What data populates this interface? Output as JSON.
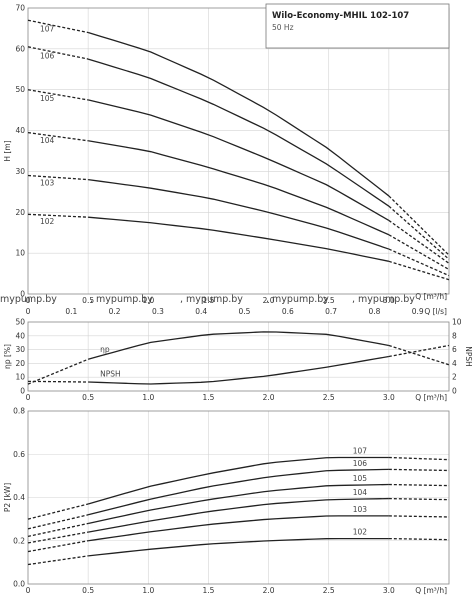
{
  "header": {
    "title": "Wilo-Economy-MHIL 102-107",
    "frequency": "50 Hz"
  },
  "watermark": "mypump.by",
  "chart_data": [
    {
      "type": "line",
      "name": "head",
      "ylabel": "H [m]",
      "xlabel_primary": "Q [m³/h]",
      "xlabel_secondary": "Q [l/s]",
      "xlim": [
        0,
        3.5
      ],
      "ylim": [
        0,
        70
      ],
      "xticks": [
        "0",
        "0.5",
        "1.0",
        "1.5",
        "2.0",
        "2.5",
        "3.0"
      ],
      "x2ticks": [
        "0",
        "0.1",
        "0.2",
        "0.3",
        "0.4",
        "0.5",
        "0.6",
        "0.7",
        "0.8",
        "0.9"
      ],
      "yticks": [
        "0",
        "10",
        "20",
        "30",
        "40",
        "50",
        "60",
        "70"
      ],
      "series": [
        {
          "name": "107",
          "solid_range": [
            0.5,
            3.0
          ],
          "x": [
            0,
            0.5,
            1.0,
            1.5,
            2.0,
            2.5,
            3.0,
            3.5
          ],
          "y": [
            67,
            64,
            59.5,
            53,
            45,
            35.5,
            24,
            9.5
          ]
        },
        {
          "name": "106",
          "solid_range": [
            0.5,
            3.0
          ],
          "x": [
            0,
            0.5,
            1.0,
            1.5,
            2.0,
            2.5,
            3.0,
            3.5
          ],
          "y": [
            60.5,
            57.5,
            53,
            47,
            40,
            31.5,
            21.5,
            8.5
          ]
        },
        {
          "name": "105",
          "solid_range": [
            0.5,
            3.0
          ],
          "x": [
            0,
            0.5,
            1.0,
            1.5,
            2.0,
            2.5,
            3.0,
            3.5
          ],
          "y": [
            50,
            47.5,
            44,
            39,
            33,
            26.5,
            18,
            7.5
          ]
        },
        {
          "name": "104",
          "solid_range": [
            0.5,
            3.0
          ],
          "x": [
            0,
            0.5,
            1.0,
            1.5,
            2.0,
            2.5,
            3.0,
            3.5
          ],
          "y": [
            39.5,
            37.5,
            35,
            31,
            26.5,
            21,
            14.5,
            6
          ]
        },
        {
          "name": "103",
          "solid_range": [
            0.5,
            3.0
          ],
          "x": [
            0,
            0.5,
            1.0,
            1.5,
            2.0,
            2.5,
            3.0,
            3.5
          ],
          "y": [
            29,
            28,
            26,
            23.5,
            20,
            16,
            11,
            4.5
          ]
        },
        {
          "name": "102",
          "solid_range": [
            0.5,
            3.0
          ],
          "x": [
            0,
            0.5,
            1.0,
            1.5,
            2.0,
            2.5,
            3.0,
            3.5
          ],
          "y": [
            19.5,
            18.8,
            17.5,
            15.8,
            13.5,
            11,
            8,
            3.5
          ]
        }
      ]
    },
    {
      "type": "line",
      "name": "efficiency-npsh",
      "ylabel": "ηp [%]",
      "y2label": "NPSH",
      "xlabel": "Q [m³/h]",
      "xlim": [
        0,
        3.5
      ],
      "ylim": [
        0,
        50
      ],
      "y2lim": [
        0,
        10
      ],
      "xticks": [
        "0",
        "0.5",
        "1.0",
        "1.5",
        "2.0",
        "2.5",
        "3.0"
      ],
      "yticks": [
        "0",
        "10",
        "20",
        "30",
        "40",
        "50"
      ],
      "y2ticks": [
        "0",
        "2",
        "4",
        "6",
        "8",
        "10"
      ],
      "series": [
        {
          "name": "ηp",
          "axis": "left",
          "solid_range": [
            0.5,
            3.0
          ],
          "x": [
            0,
            0.5,
            1.0,
            1.5,
            2.0,
            2.5,
            3.0,
            3.5
          ],
          "y": [
            5,
            23,
            35,
            41,
            43,
            41,
            33,
            19
          ]
        },
        {
          "name": "NPSH",
          "axis": "right",
          "solid_range": [
            0.5,
            3.0
          ],
          "x": [
            0,
            0.5,
            1.0,
            1.5,
            2.0,
            2.5,
            3.0,
            3.5
          ],
          "y": [
            1.4,
            1.3,
            1.0,
            1.3,
            2.2,
            3.5,
            5.0,
            6.6
          ]
        }
      ]
    },
    {
      "type": "line",
      "name": "power",
      "ylabel": "P2 [kW]",
      "xlabel": "Q [m³/h]",
      "xlim": [
        0,
        3.5
      ],
      "ylim": [
        0,
        0.8
      ],
      "xticks": [
        "0",
        "0.5",
        "1.0",
        "1.5",
        "2.0",
        "2.5",
        "3.0"
      ],
      "yticks": [
        "0.0",
        "0.2",
        "0.4",
        "0.6",
        "0.8"
      ],
      "series": [
        {
          "name": "107",
          "solid_range": [
            0.5,
            3.0
          ],
          "x": [
            0,
            0.5,
            1.0,
            1.5,
            2.0,
            2.5,
            3.0,
            3.5
          ],
          "y": [
            0.3,
            0.37,
            0.45,
            0.51,
            0.56,
            0.585,
            0.585,
            0.575
          ]
        },
        {
          "name": "106",
          "solid_range": [
            0.5,
            3.0
          ],
          "x": [
            0,
            0.5,
            1.0,
            1.5,
            2.0,
            2.5,
            3.0,
            3.5
          ],
          "y": [
            0.255,
            0.32,
            0.39,
            0.45,
            0.495,
            0.525,
            0.53,
            0.525
          ]
        },
        {
          "name": "105",
          "solid_range": [
            0.5,
            3.0
          ],
          "x": [
            0,
            0.5,
            1.0,
            1.5,
            2.0,
            2.5,
            3.0,
            3.5
          ],
          "y": [
            0.22,
            0.28,
            0.34,
            0.39,
            0.43,
            0.455,
            0.46,
            0.455
          ]
        },
        {
          "name": "104",
          "solid_range": [
            0.5,
            3.0
          ],
          "x": [
            0,
            0.5,
            1.0,
            1.5,
            2.0,
            2.5,
            3.0,
            3.5
          ],
          "y": [
            0.19,
            0.24,
            0.29,
            0.335,
            0.37,
            0.39,
            0.395,
            0.39
          ]
        },
        {
          "name": "103",
          "solid_range": [
            0.5,
            3.0
          ],
          "x": [
            0,
            0.5,
            1.0,
            1.5,
            2.0,
            2.5,
            3.0,
            3.5
          ],
          "y": [
            0.15,
            0.2,
            0.24,
            0.275,
            0.3,
            0.315,
            0.315,
            0.31
          ]
        },
        {
          "name": "102",
          "solid_range": [
            0.5,
            3.0
          ],
          "x": [
            0,
            0.5,
            1.0,
            1.5,
            2.0,
            2.5,
            3.0,
            3.5
          ],
          "y": [
            0.09,
            0.13,
            0.16,
            0.185,
            0.2,
            0.21,
            0.21,
            0.205
          ]
        }
      ]
    }
  ]
}
